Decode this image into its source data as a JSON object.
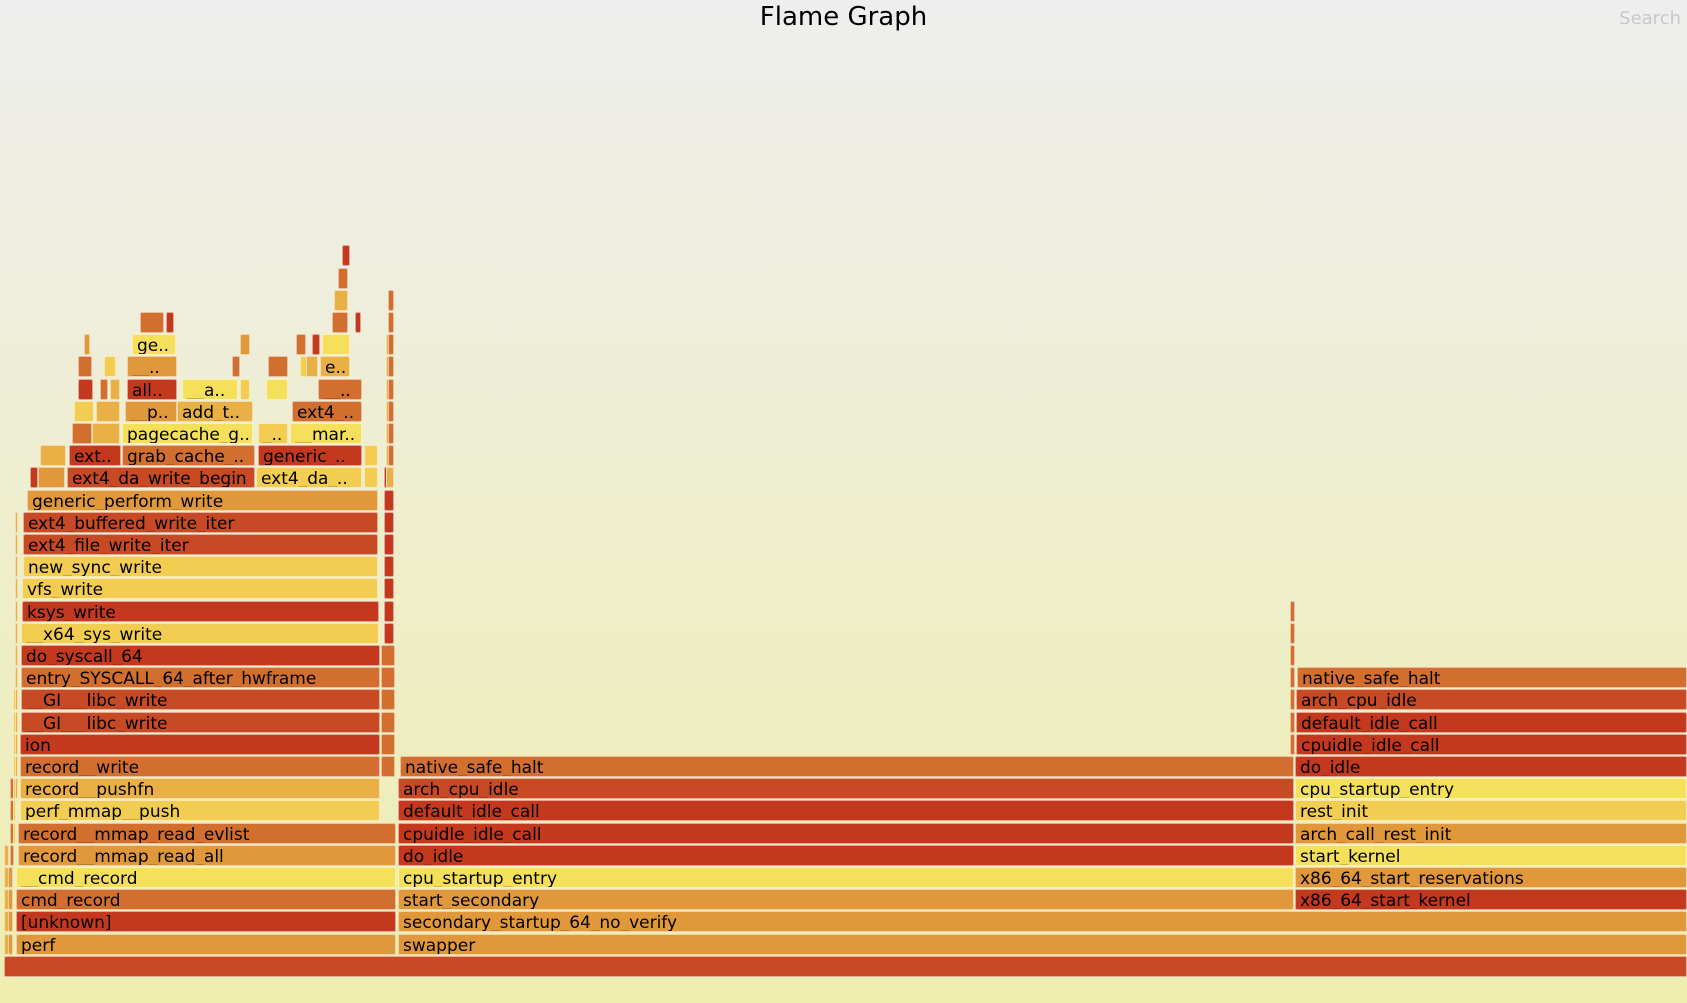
{
  "header": {
    "title": "Flame Graph",
    "search_label": "Search"
  },
  "colors": {
    "dark_red": "#c4381e",
    "red": "#c84a24",
    "dark_orange": "#d26f2f",
    "orange": "#e0983a",
    "light_orange": "#e8b045",
    "yellow": "#f2cd52",
    "bright_yellow": "#f5e05c"
  },
  "frames": [
    {
      "id": "root",
      "text": "",
      "color": "red"
    },
    {
      "id": "perf",
      "text": "perf",
      "color": "orange"
    },
    {
      "id": "unknown",
      "text": "[unknown]",
      "color": "dark_red"
    },
    {
      "id": "cmd_record",
      "text": "cmd_record",
      "color": "dark_orange"
    },
    {
      "id": "__cmd_record",
      "text": "__cmd_record",
      "color": "bright_yellow"
    },
    {
      "id": "record__mmap_read_all",
      "text": "record__mmap_read_all",
      "color": "orange"
    },
    {
      "id": "record__mmap_read_evlist",
      "text": "record__mmap_read_evlist",
      "color": "dark_orange"
    },
    {
      "id": "perf_mmap__push",
      "text": "perf_mmap__push",
      "color": "yellow"
    },
    {
      "id": "record__pushfn",
      "text": "record__pushfn",
      "color": "light_orange"
    },
    {
      "id": "record__write",
      "text": "record__write",
      "color": "dark_orange"
    },
    {
      "id": "ion",
      "text": "ion",
      "color": "dark_red"
    },
    {
      "id": "__GI___libc_write_1",
      "text": "__GI___libc_write",
      "color": "red"
    },
    {
      "id": "__GI___libc_write_2",
      "text": "__GI___libc_write",
      "color": "red"
    },
    {
      "id": "entry_SYSCALL_64_after_hwframe",
      "text": "entry_SYSCALL_64_after_hwframe",
      "color": "dark_orange"
    },
    {
      "id": "do_syscall_64",
      "text": "do_syscall_64",
      "color": "dark_red"
    },
    {
      "id": "__x64_sys_write",
      "text": "__x64_sys_write",
      "color": "yellow"
    },
    {
      "id": "ksys_write",
      "text": "ksys_write",
      "color": "dark_red"
    },
    {
      "id": "vfs_write",
      "text": "vfs_write",
      "color": "yellow"
    },
    {
      "id": "new_sync_write",
      "text": "new_sync_write",
      "color": "yellow"
    },
    {
      "id": "ext4_file_write_iter",
      "text": "ext4_file_write_iter",
      "color": "red"
    },
    {
      "id": "ext4_buffered_write_iter",
      "text": "ext4_buffered_write_iter",
      "color": "red"
    },
    {
      "id": "generic_perform_write",
      "text": "generic_perform_write",
      "color": "orange"
    },
    {
      "id": "ext4_da_write_begin",
      "text": "ext4_da_write_begin",
      "color": "red"
    },
    {
      "id": "ext4_da_short",
      "text": "ext4_da_..",
      "color": "yellow"
    },
    {
      "id": "ext_short",
      "text": "ext..",
      "color": "dark_red"
    },
    {
      "id": "grab_cache_short",
      "text": "grab_cache_..",
      "color": "dark_orange"
    },
    {
      "id": "generic_short",
      "text": "generic_..",
      "color": "dark_red"
    },
    {
      "id": "pagecache_g_short",
      "text": "pagecache_g..",
      "color": "bright_yellow"
    },
    {
      "id": "underscore_short",
      "text": "_..",
      "color": "yellow"
    },
    {
      "id": "mar_short",
      "text": "__mar..",
      "color": "bright_yellow"
    },
    {
      "id": "p_short",
      "text": "__p..",
      "color": "orange"
    },
    {
      "id": "add_t_short",
      "text": "add_t..",
      "color": "light_orange"
    },
    {
      "id": "ext4_short",
      "text": "ext4_..",
      "color": "dark_orange"
    },
    {
      "id": "all_short",
      "text": "all..",
      "color": "dark_red"
    },
    {
      "id": "a_short",
      "text": "__a..",
      "color": "bright_yellow"
    },
    {
      "id": "dunder_short_1",
      "text": "__..",
      "color": "dark_orange"
    },
    {
      "id": "dunder_short_2",
      "text": "__..",
      "color": "orange"
    },
    {
      "id": "e_short",
      "text": "e..",
      "color": "light_orange"
    },
    {
      "id": "ge_short",
      "text": "ge..",
      "color": "bright_yellow"
    },
    {
      "id": "swapper",
      "text": "swapper",
      "color": "orange"
    },
    {
      "id": "secondary_startup_64_no_verify",
      "text": "secondary_startup_64_no_verify",
      "color": "orange"
    },
    {
      "id": "start_secondary",
      "text": "start_secondary",
      "color": "orange"
    },
    {
      "id": "cpu_startup_entry_1",
      "text": "cpu_startup_entry",
      "color": "bright_yellow"
    },
    {
      "id": "do_idle_1",
      "text": "do_idle",
      "color": "dark_red"
    },
    {
      "id": "cpuidle_idle_call_1",
      "text": "cpuidle_idle_call",
      "color": "dark_red"
    },
    {
      "id": "default_idle_call_1",
      "text": "default_idle_call",
      "color": "dark_red"
    },
    {
      "id": "arch_cpu_idle_1",
      "text": "arch_cpu_idle",
      "color": "red"
    },
    {
      "id": "native_safe_halt_1",
      "text": "native_safe_halt",
      "color": "dark_orange"
    },
    {
      "id": "x86_64_start_kernel",
      "text": "x86_64_start_kernel",
      "color": "dark_red"
    },
    {
      "id": "x86_64_start_reservations",
      "text": "x86_64_start_reservations",
      "color": "orange"
    },
    {
      "id": "start_kernel",
      "text": "start_kernel",
      "color": "bright_yellow"
    },
    {
      "id": "arch_call_rest_init",
      "text": "arch_call_rest_init",
      "color": "orange"
    },
    {
      "id": "rest_init",
      "text": "rest_init",
      "color": "yellow"
    },
    {
      "id": "cpu_startup_entry_2",
      "text": "cpu_startup_entry",
      "color": "bright_yellow"
    },
    {
      "id": "do_idle_2",
      "text": "do_idle",
      "color": "dark_red"
    },
    {
      "id": "cpuidle_idle_call_2",
      "text": "cpuidle_idle_call",
      "color": "dark_red"
    },
    {
      "id": "default_idle_call_2",
      "text": "default_idle_call",
      "color": "dark_red"
    },
    {
      "id": "arch_cpu_idle_2",
      "text": "arch_cpu_idle",
      "color": "red"
    },
    {
      "id": "native_safe_halt_2",
      "text": "native_safe_halt",
      "color": "dark_orange"
    }
  ]
}
